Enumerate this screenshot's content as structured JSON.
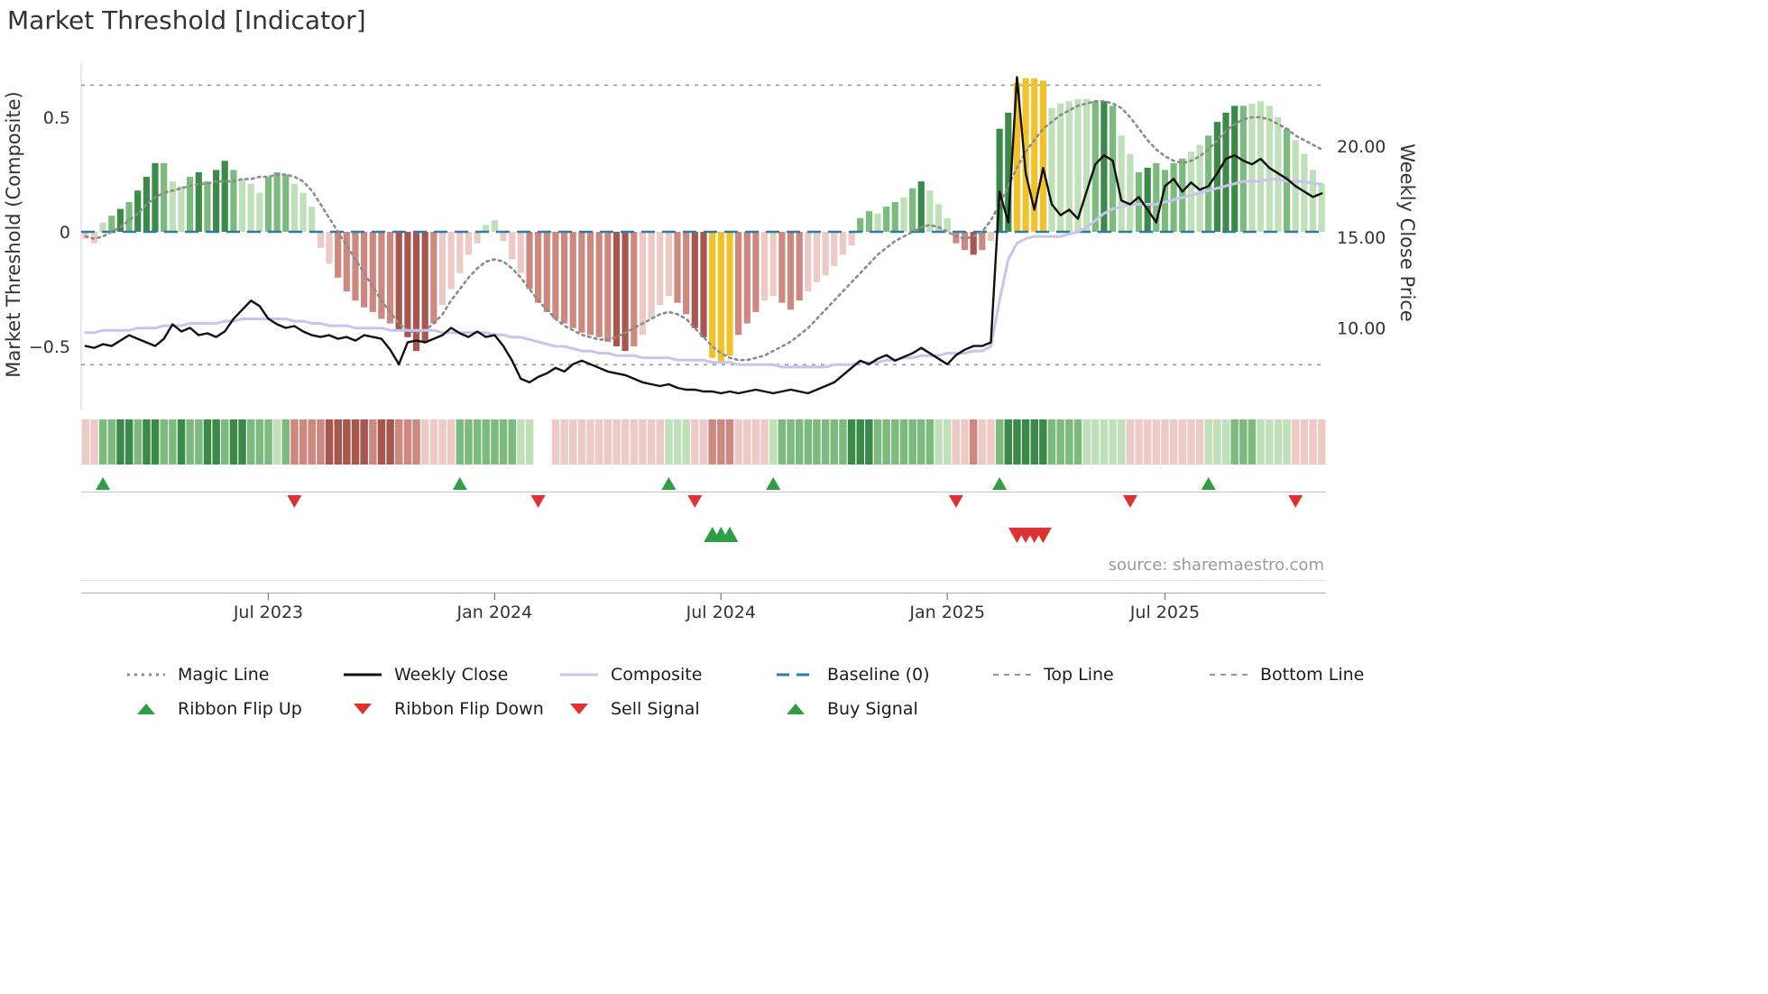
{
  "title": "Market Threshold [Indicator]",
  "source": "source: sharemaestro.com",
  "chart_data": {
    "type": "mixed",
    "title": "Market Threshold [Indicator]",
    "left_axis_label": "Market Threshold (Composite)",
    "right_axis_label": "Weekly Close Price",
    "left_ticks": [
      {
        "v": 0.5,
        "label": "0.5"
      },
      {
        "v": 0,
        "label": "0"
      },
      {
        "v": -0.5,
        "label": "−0.5"
      }
    ],
    "right_ticks": [
      {
        "v": 20,
        "label": "20.00"
      },
      {
        "v": 15,
        "label": "15.00"
      },
      {
        "v": 10,
        "label": "10.00"
      }
    ],
    "x_ticks": [
      {
        "label": "Jul 2023",
        "i": 21
      },
      {
        "label": "Jan 2024",
        "i": 47
      },
      {
        "label": "Jul 2024",
        "i": 73
      },
      {
        "label": "Jan 2025",
        "i": 99
      },
      {
        "label": "Jul 2025",
        "i": 124
      }
    ],
    "left_range": [
      -0.75,
      0.75
    ],
    "top_line": 0.64,
    "bottom_line": -0.58,
    "baseline": 0,
    "source": "source: sharemaestro.com",
    "palette": {
      "g1": "#bfe0b8",
      "g2": "#7cbb7d",
      "g3": "#3c8a4a",
      "r1": "#eecac6",
      "r2": "#cd8880",
      "r3": "#a8574f",
      "au": "#f3c22b",
      "w": "#ffffff"
    },
    "colors": {
      "magic": "#8c8c8c",
      "weekly_close": "#111111",
      "composite": "#c8c4ec",
      "baseline": "#2d7ca6",
      "guides": "#9a9a9a",
      "up": "#2f9e44",
      "down": "#e03131"
    },
    "series": {
      "bars": [
        -0.03,
        -0.05,
        0.04,
        0.07,
        0.1,
        0.13,
        0.18,
        0.24,
        0.3,
        0.3,
        0.22,
        0.2,
        0.24,
        0.26,
        0.22,
        0.27,
        0.31,
        0.27,
        0.23,
        0.21,
        0.17,
        0.24,
        0.26,
        0.25,
        0.21,
        0.17,
        0.11,
        -0.07,
        -0.14,
        -0.2,
        -0.26,
        -0.3,
        -0.33,
        -0.35,
        -0.38,
        -0.4,
        -0.43,
        -0.46,
        -0.52,
        -0.48,
        -0.4,
        -0.32,
        -0.25,
        -0.18,
        -0.1,
        -0.05,
        0.03,
        0.05,
        -0.04,
        -0.12,
        -0.18,
        -0.25,
        -0.31,
        -0.35,
        -0.38,
        -0.4,
        -0.42,
        -0.44,
        -0.45,
        -0.46,
        -0.48,
        -0.5,
        -0.52,
        -0.5,
        -0.45,
        -0.38,
        -0.32,
        -0.28,
        -0.31,
        -0.36,
        -0.42,
        -0.46,
        -0.55,
        -0.57,
        -0.54,
        -0.45,
        -0.4,
        -0.35,
        -0.3,
        -0.28,
        -0.31,
        -0.34,
        -0.3,
        -0.26,
        -0.22,
        -0.19,
        -0.15,
        -0.1,
        -0.06,
        0.06,
        0.09,
        0.08,
        0.11,
        0.13,
        0.15,
        0.19,
        0.22,
        0.18,
        0.12,
        0.06,
        -0.05,
        -0.08,
        -0.1,
        -0.08,
        -0.04,
        0.45,
        0.52,
        0.65,
        0.67,
        0.67,
        0.66,
        0.54,
        0.56,
        0.57,
        0.58,
        0.58,
        0.57,
        0.57,
        0.55,
        0.42,
        0.34,
        0.26,
        0.28,
        0.3,
        0.27,
        0.3,
        0.32,
        0.35,
        0.38,
        0.42,
        0.48,
        0.52,
        0.55,
        0.55,
        0.56,
        0.57,
        0.55,
        0.5,
        0.45,
        0.4,
        0.34,
        0.27,
        0.21
      ],
      "bar_colors": [
        "r1",
        "r1",
        "g1",
        "g2",
        "g3",
        "g2",
        "g3",
        "g3",
        "g3",
        "g2",
        "g1",
        "g1",
        "g2",
        "g3",
        "g2",
        "g3",
        "g3",
        "g2",
        "g1",
        "g1",
        "g1",
        "g2",
        "g2",
        "g2",
        "g1",
        "g1",
        "g1",
        "r1",
        "r1",
        "r2",
        "r2",
        "r2",
        "r2",
        "r2",
        "r2",
        "r2",
        "r3",
        "r3",
        "r3",
        "r3",
        "r2",
        "r1",
        "r1",
        "r1",
        "r1",
        "r1",
        "g1",
        "g1",
        "r1",
        "r1",
        "r1",
        "r2",
        "r2",
        "r2",
        "r2",
        "r2",
        "r2",
        "r2",
        "r2",
        "r2",
        "r2",
        "r3",
        "r3",
        "r2",
        "r1",
        "r1",
        "r1",
        "r1",
        "r2",
        "r2",
        "r3",
        "r3",
        "au",
        "au",
        "au",
        "r2",
        "r2",
        "r2",
        "r1",
        "r1",
        "r2",
        "r2",
        "r2",
        "r1",
        "r1",
        "r1",
        "r1",
        "r1",
        "r1",
        "g2",
        "g2",
        "g1",
        "g2",
        "g2",
        "g1",
        "g2",
        "g3",
        "g1",
        "g1",
        "g1",
        "r2",
        "r2",
        "r3",
        "r2",
        "r1",
        "g3",
        "g3",
        "au",
        "au",
        "au",
        "au",
        "g1",
        "g1",
        "g1",
        "g1",
        "g1",
        "g2",
        "g3",
        "g2",
        "g1",
        "g1",
        "g2",
        "g3",
        "g2",
        "g2",
        "g2",
        "g2",
        "g1",
        "g1",
        "g2",
        "g3",
        "g3",
        "g3",
        "g2",
        "g1",
        "g1",
        "g1",
        "g1",
        "g2",
        "g1",
        "g1",
        "g1",
        "g1"
      ],
      "weekly_close": [
        9.0,
        8.9,
        9.1,
        9.0,
        9.3,
        9.6,
        9.4,
        9.2,
        9.0,
        9.4,
        10.2,
        9.8,
        10.0,
        9.6,
        9.7,
        9.5,
        9.8,
        10.5,
        11.0,
        11.5,
        11.2,
        10.5,
        10.2,
        10.0,
        10.1,
        9.8,
        9.6,
        9.5,
        9.6,
        9.4,
        9.5,
        9.3,
        9.6,
        9.5,
        9.4,
        8.8,
        8.0,
        9.2,
        9.3,
        9.2,
        9.4,
        9.6,
        10.0,
        9.7,
        9.5,
        9.8,
        9.5,
        9.6,
        9.0,
        8.2,
        7.2,
        7.0,
        7.3,
        7.5,
        7.8,
        7.6,
        8.0,
        8.2,
        8.0,
        7.8,
        7.6,
        7.5,
        7.4,
        7.2,
        7.0,
        6.9,
        6.8,
        6.9,
        6.7,
        6.6,
        6.6,
        6.5,
        6.5,
        6.4,
        6.5,
        6.4,
        6.5,
        6.6,
        6.5,
        6.4,
        6.5,
        6.6,
        6.5,
        6.4,
        6.6,
        6.8,
        7.0,
        7.4,
        7.8,
        8.2,
        8.0,
        8.3,
        8.5,
        8.2,
        8.4,
        8.6,
        8.9,
        8.6,
        8.3,
        8.0,
        8.5,
        8.8,
        9.0,
        9.0,
        9.2,
        17.5,
        15.8,
        23.8,
        18.5,
        16.5,
        18.8,
        16.8,
        16.2,
        16.5,
        16.0,
        17.5,
        19.0,
        19.5,
        19.2,
        17.0,
        16.8,
        17.2,
        16.5,
        15.8,
        17.8,
        18.2,
        17.5,
        18.0,
        17.6,
        17.8,
        18.5,
        19.3,
        19.5,
        19.2,
        19.0,
        19.3,
        18.8,
        18.5,
        18.2,
        17.8,
        17.5,
        17.2,
        17.4
      ],
      "composite": [
        -0.44,
        -0.44,
        -0.43,
        -0.43,
        -0.43,
        -0.43,
        -0.42,
        -0.42,
        -0.42,
        -0.41,
        -0.41,
        -0.41,
        -0.4,
        -0.4,
        -0.4,
        -0.4,
        -0.39,
        -0.39,
        -0.38,
        -0.38,
        -0.38,
        -0.38,
        -0.38,
        -0.38,
        -0.39,
        -0.39,
        -0.4,
        -0.4,
        -0.41,
        -0.41,
        -0.41,
        -0.42,
        -0.42,
        -0.42,
        -0.42,
        -0.43,
        -0.43,
        -0.43,
        -0.43,
        -0.43,
        -0.43,
        -0.44,
        -0.44,
        -0.44,
        -0.44,
        -0.44,
        -0.44,
        -0.45,
        -0.45,
        -0.46,
        -0.46,
        -0.47,
        -0.48,
        -0.49,
        -0.5,
        -0.5,
        -0.51,
        -0.52,
        -0.52,
        -0.53,
        -0.53,
        -0.54,
        -0.54,
        -0.54,
        -0.55,
        -0.55,
        -0.55,
        -0.55,
        -0.56,
        -0.56,
        -0.56,
        -0.56,
        -0.57,
        -0.57,
        -0.57,
        -0.58,
        -0.58,
        -0.58,
        -0.58,
        -0.58,
        -0.59,
        -0.59,
        -0.59,
        -0.59,
        -0.59,
        -0.59,
        -0.58,
        -0.58,
        -0.58,
        -0.57,
        -0.57,
        -0.57,
        -0.56,
        -0.56,
        -0.55,
        -0.55,
        -0.54,
        -0.54,
        -0.54,
        -0.53,
        -0.53,
        -0.53,
        -0.52,
        -0.52,
        -0.5,
        -0.3,
        -0.12,
        -0.05,
        -0.03,
        -0.02,
        -0.02,
        -0.02,
        -0.02,
        -0.01,
        0.0,
        0.02,
        0.05,
        0.08,
        0.1,
        0.11,
        0.12,
        0.12,
        0.12,
        0.12,
        0.13,
        0.14,
        0.15,
        0.16,
        0.17,
        0.18,
        0.19,
        0.2,
        0.21,
        0.22,
        0.22,
        0.22,
        0.23,
        0.23,
        0.22,
        0.22,
        0.22,
        0.21,
        0.21
      ],
      "magic_line": [
        -0.02,
        -0.03,
        -0.02,
        0.0,
        0.02,
        0.05,
        0.08,
        0.12,
        0.15,
        0.17,
        0.18,
        0.19,
        0.2,
        0.21,
        0.21,
        0.22,
        0.22,
        0.22,
        0.23,
        0.23,
        0.24,
        0.24,
        0.25,
        0.25,
        0.24,
        0.22,
        0.18,
        0.12,
        0.06,
        0.0,
        -0.06,
        -0.12,
        -0.18,
        -0.24,
        -0.3,
        -0.35,
        -0.4,
        -0.43,
        -0.44,
        -0.43,
        -0.4,
        -0.36,
        -0.3,
        -0.25,
        -0.2,
        -0.16,
        -0.13,
        -0.12,
        -0.13,
        -0.16,
        -0.2,
        -0.25,
        -0.3,
        -0.34,
        -0.38,
        -0.41,
        -0.43,
        -0.45,
        -0.46,
        -0.47,
        -0.47,
        -0.46,
        -0.44,
        -0.42,
        -0.4,
        -0.38,
        -0.36,
        -0.35,
        -0.36,
        -0.38,
        -0.42,
        -0.46,
        -0.5,
        -0.53,
        -0.55,
        -0.56,
        -0.56,
        -0.55,
        -0.54,
        -0.52,
        -0.5,
        -0.48,
        -0.45,
        -0.42,
        -0.38,
        -0.34,
        -0.3,
        -0.26,
        -0.22,
        -0.18,
        -0.14,
        -0.1,
        -0.07,
        -0.04,
        -0.02,
        0.0,
        0.02,
        0.03,
        0.02,
        0.0,
        -0.02,
        -0.03,
        -0.02,
        0.0,
        0.05,
        0.12,
        0.2,
        0.28,
        0.35,
        0.4,
        0.45,
        0.48,
        0.51,
        0.53,
        0.55,
        0.56,
        0.57,
        0.57,
        0.56,
        0.54,
        0.5,
        0.45,
        0.4,
        0.36,
        0.33,
        0.31,
        0.3,
        0.31,
        0.33,
        0.36,
        0.4,
        0.44,
        0.47,
        0.49,
        0.5,
        0.5,
        0.49,
        0.47,
        0.45,
        0.42,
        0.4,
        0.38,
        0.36
      ],
      "ribbon": [
        "r1",
        "r1",
        "g2",
        "g2",
        "g3",
        "g3",
        "g2",
        "g3",
        "g3",
        "g2",
        "g2",
        "g3",
        "g2",
        "g2",
        "g3",
        "g3",
        "g2",
        "g3",
        "g3",
        "g2",
        "g2",
        "g2",
        "g1",
        "g2",
        "r2",
        "r2",
        "r2",
        "r2",
        "r3",
        "r3",
        "r3",
        "r3",
        "r3",
        "r2",
        "r3",
        "r3",
        "r2",
        "r2",
        "r2",
        "r1",
        "r1",
        "r1",
        "r1",
        "g2",
        "g2",
        "g2",
        "g2",
        "g2",
        "g2",
        "g2",
        "g1",
        "g1",
        "w",
        "w",
        "r1",
        "r1",
        "r1",
        "r1",
        "r1",
        "r1",
        "r1",
        "r1",
        "r1",
        "r1",
        "r1",
        "r1",
        "r1",
        "g1",
        "g1",
        "g1",
        "r1",
        "r1",
        "r2",
        "r2",
        "r2",
        "r1",
        "r1",
        "r1",
        "r1",
        "g1",
        "g2",
        "g2",
        "g2",
        "g2",
        "g2",
        "g2",
        "g2",
        "g2",
        "g3",
        "g3",
        "g3",
        "g2",
        "g2",
        "g2",
        "g2",
        "g2",
        "g2",
        "g2",
        "g1",
        "g1",
        "r1",
        "r1",
        "r2",
        "r1",
        "r1",
        "g2",
        "g3",
        "g3",
        "g3",
        "g3",
        "g3",
        "g2",
        "g2",
        "g2",
        "g2",
        "g1",
        "g1",
        "g1",
        "g1",
        "g1",
        "r1",
        "r1",
        "r1",
        "r1",
        "r1",
        "r1",
        "r1",
        "r1",
        "r1",
        "g1",
        "g1",
        "g1",
        "g2",
        "g2",
        "g2",
        "g1",
        "g1",
        "g1",
        "g1",
        "r1",
        "r1",
        "r1",
        "r1"
      ]
    },
    "signals": {
      "ribbon_flip_up": [
        2,
        43,
        67,
        79,
        105,
        129
      ],
      "ribbon_flip_down": [
        24,
        52,
        70,
        100,
        120,
        139
      ],
      "buy": [
        72,
        73,
        74
      ],
      "sell": [
        107,
        108,
        109,
        110
      ]
    }
  },
  "legend": {
    "row1": [
      {
        "label": "Magic Line",
        "marker": "dotted",
        "color": "#8c8c8c"
      },
      {
        "label": "Weekly Close",
        "marker": "solid",
        "color": "#111111"
      },
      {
        "label": "Composite",
        "marker": "solid",
        "color": "#c8c4ec"
      },
      {
        "label": "Baseline (0)",
        "marker": "dashed-long",
        "color": "#2d7ca6"
      },
      {
        "label": "Top Line",
        "marker": "dashed",
        "color": "#999999"
      },
      {
        "label": "Bottom Line",
        "marker": "dashed",
        "color": "#999999"
      }
    ],
    "row2": [
      {
        "label": "Ribbon Flip Up",
        "marker": "triangle-up",
        "color": "#2f9e44"
      },
      {
        "label": "Ribbon Flip Down",
        "marker": "triangle-down",
        "color": "#e03131"
      },
      {
        "label": "Sell Signal",
        "marker": "triangle-down",
        "color": "#e03131"
      },
      {
        "label": "Buy Signal",
        "marker": "triangle-up",
        "color": "#2f9e44"
      }
    ]
  }
}
